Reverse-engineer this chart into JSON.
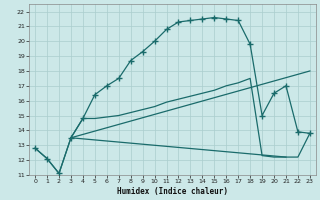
{
  "xlabel": "Humidex (Indice chaleur)",
  "xlim": [
    -0.5,
    23.5
  ],
  "ylim": [
    11,
    22.5
  ],
  "yticks": [
    11,
    12,
    13,
    14,
    15,
    16,
    17,
    18,
    19,
    20,
    21,
    22
  ],
  "xticks": [
    0,
    1,
    2,
    3,
    4,
    5,
    6,
    7,
    8,
    9,
    10,
    11,
    12,
    13,
    14,
    15,
    16,
    17,
    18,
    19,
    20,
    21,
    22,
    23
  ],
  "bg_color": "#cce8e8",
  "grid_color": "#aacece",
  "line_color": "#1a6b6b",
  "line1_x": [
    0,
    1,
    2,
    3,
    4,
    5,
    6,
    7,
    8,
    9,
    10,
    11,
    12,
    13,
    14,
    15,
    16,
    17,
    18,
    19,
    20,
    21,
    22,
    23
  ],
  "line1_y": [
    12.8,
    12.1,
    11.1,
    13.5,
    14.8,
    16.4,
    17.0,
    17.5,
    18.7,
    19.3,
    20.0,
    20.8,
    21.3,
    21.4,
    21.5,
    21.6,
    21.5,
    21.4,
    19.8,
    15.0,
    16.5,
    17.0,
    13.9,
    13.8
  ],
  "line2_x": [
    0,
    1,
    2,
    3,
    4,
    5,
    6,
    7,
    8,
    9,
    10,
    11,
    12,
    13,
    14,
    15,
    16,
    17,
    18,
    19,
    20,
    21,
    22,
    23
  ],
  "line2_y": [
    12.8,
    12.1,
    11.1,
    13.5,
    14.8,
    14.8,
    14.9,
    15.0,
    15.2,
    15.4,
    15.6,
    15.9,
    16.1,
    16.3,
    16.5,
    16.7,
    17.0,
    17.2,
    17.5,
    12.3,
    12.2,
    12.2,
    12.2,
    13.8
  ],
  "line3_x": [
    3,
    23
  ],
  "line3_y": [
    13.5,
    18.0
  ],
  "line4_x": [
    3,
    21
  ],
  "line4_y": [
    13.5,
    12.2
  ]
}
